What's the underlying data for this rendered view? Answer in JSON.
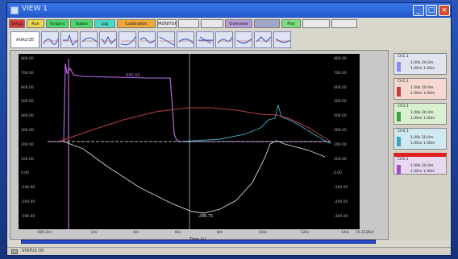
{
  "window": {
    "title": "VIEW 1"
  },
  "tabs": [
    {
      "label": "Setup",
      "color": "#d83a3a"
    },
    {
      "label": "Run",
      "color": "#e8d84a"
    },
    {
      "label": "Graphs",
      "color": "#4ad86a"
    },
    {
      "label": "Tables",
      "color": "#4ad86a"
    },
    {
      "label": "Log",
      "color": "#4ad8c8"
    },
    {
      "label": "Calibration",
      "color": "#f0a838"
    },
    {
      "label": "MONITOR",
      "color": "#e8e8e8"
    },
    {
      "label": "",
      "color": "#e8e8e8"
    },
    {
      "label": "",
      "color": "#e8e8e8"
    },
    {
      "label": "Overview",
      "color": "#b89ad8"
    },
    {
      "label": "",
      "color": "#9fa6c8"
    },
    {
      "label": "Plot",
      "color": "#7ae07a"
    },
    {
      "label": "",
      "color": "#e8e8e8"
    },
    {
      "label": "",
      "color": "#e8e8e8"
    }
  ],
  "thumbnails": {
    "first_label": "ANALYZE"
  },
  "plot": {
    "left_ticks": [
      "800.00",
      "700.00",
      "600.00",
      "500.00",
      "400.00",
      "300.00",
      "200.00",
      "100.00",
      "0.00",
      "-100.00",
      "-200.00",
      "-300.00"
    ],
    "right_ticks": [
      "800.00",
      "700.00",
      "600.00",
      "500.00",
      "400.00",
      "300.00",
      "200.00",
      "100.00",
      "0.00",
      "-100.00",
      "-200.00",
      "-300.00"
    ],
    "x_ticks": [
      "-400.2m",
      "2m",
      "4m",
      "6m",
      "8m",
      "10m",
      "12m",
      "14m",
      "15.1126m"
    ],
    "x_title": "Time [s]",
    "trace_label_1": "640.00",
    "trace_label_2": "-288.75"
  },
  "legend": [
    {
      "name": "CH1.1",
      "v1": "1.00k 20.0m",
      "v2": "1.00m 1.00m",
      "bg": "#dfe4ee",
      "swatch": "#8a8af0"
    },
    {
      "name": "CH2.1",
      "v1": "1.00k 20.0m",
      "v2": "1.00m 1.00m",
      "bg": "#f6d8d0",
      "swatch": "#c04040"
    },
    {
      "name": "CH3.1",
      "v1": "1.00k 20.0m",
      "v2": "1.00m 1.00m",
      "bg": "#d8f0d0",
      "swatch": "#40a040"
    },
    {
      "name": "CH4.1",
      "v1": "1.00k 20.0m",
      "v2": "1.00m 1.00m",
      "bg": "#d0e8f0",
      "swatch": "#40a0c0"
    },
    {
      "name": "CH5.1",
      "v1": "1.00k 20.0m",
      "v2": "1.00m 1.00m",
      "bg": "#e8d8f0",
      "swatch": "#a050c0"
    }
  ],
  "status": {
    "text": "STATUS OK"
  }
}
